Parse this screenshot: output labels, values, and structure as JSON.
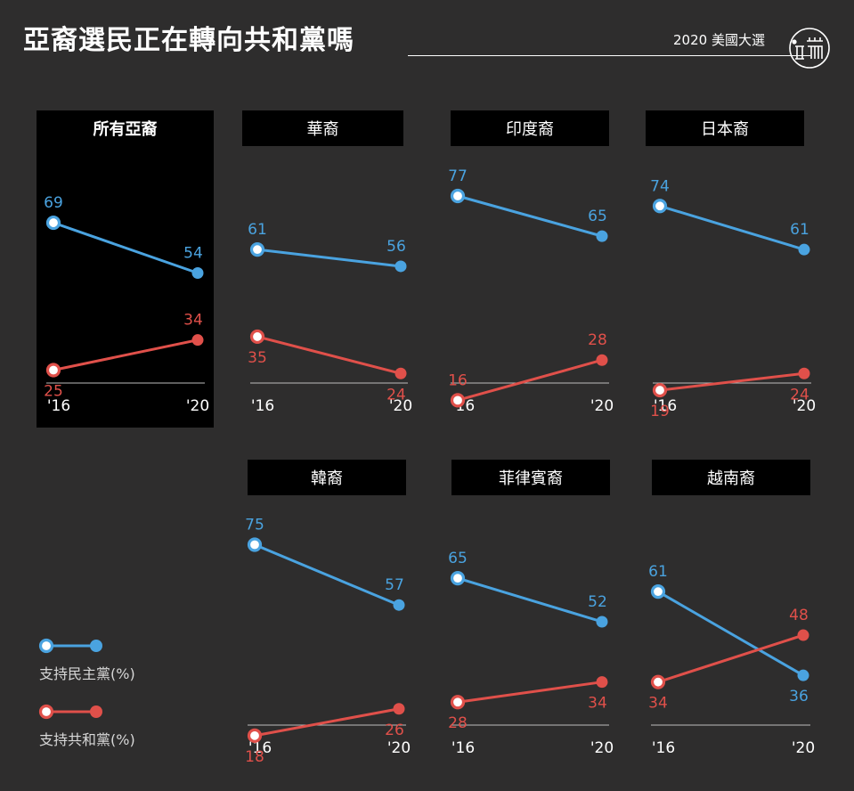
{
  "header": {
    "title": "亞裔選民正在轉向共和黨嗎",
    "subtitle": "2020 美國大選"
  },
  "colors": {
    "background": "#2e2d2d",
    "democrat": "#4aa3e0",
    "republican": "#e0504a",
    "highlight_panel": "#000000",
    "title_box": "#000000"
  },
  "chart_data": {
    "type": "line",
    "x": [
      "'16",
      "'20"
    ],
    "ylim": [
      10,
      80
    ],
    "panels": [
      {
        "title": "所有亞裔",
        "highlight": true,
        "series": [
          {
            "name": "支持民主黨(%)",
            "values": [
              69,
              54
            ]
          },
          {
            "name": "支持共和黨(%)",
            "values": [
              25,
              34
            ]
          }
        ]
      },
      {
        "title": "華裔",
        "highlight": false,
        "series": [
          {
            "name": "支持民主黨(%)",
            "values": [
              61,
              56
            ]
          },
          {
            "name": "支持共和黨(%)",
            "values": [
              35,
              24
            ]
          }
        ]
      },
      {
        "title": "印度裔",
        "highlight": false,
        "series": [
          {
            "name": "支持民主黨(%)",
            "values": [
              77,
              65
            ]
          },
          {
            "name": "支持共和黨(%)",
            "values": [
              16,
              28
            ]
          }
        ]
      },
      {
        "title": "日本裔",
        "highlight": false,
        "series": [
          {
            "name": "支持民主黨(%)",
            "values": [
              74,
              61
            ]
          },
          {
            "name": "支持共和黨(%)",
            "values": [
              19,
              24
            ]
          }
        ]
      },
      {
        "title": "韓裔",
        "highlight": false,
        "series": [
          {
            "name": "支持民主黨(%)",
            "values": [
              75,
              57
            ]
          },
          {
            "name": "支持共和黨(%)",
            "values": [
              18,
              26
            ]
          }
        ]
      },
      {
        "title": "菲律賓裔",
        "highlight": false,
        "series": [
          {
            "name": "支持民主黨(%)",
            "values": [
              65,
              52
            ]
          },
          {
            "name": "支持共和黨(%)",
            "values": [
              28,
              34
            ]
          }
        ]
      },
      {
        "title": "越南裔",
        "highlight": false,
        "series": [
          {
            "name": "支持民主黨(%)",
            "values": [
              61,
              36
            ]
          },
          {
            "name": "支持共和黨(%)",
            "values": [
              34,
              48
            ]
          }
        ]
      }
    ],
    "legend": [
      {
        "label": "支持民主黨(%)",
        "color": "#4aa3e0"
      },
      {
        "label": "支持共和黨(%)",
        "color": "#e0504a"
      }
    ]
  }
}
